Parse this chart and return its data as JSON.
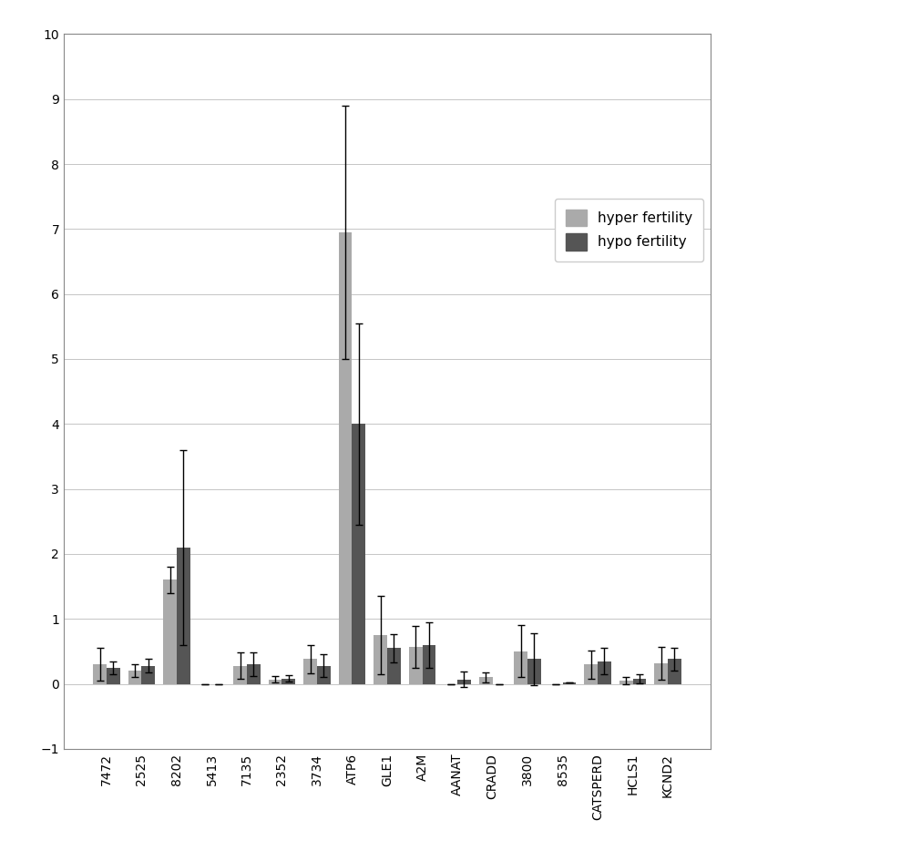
{
  "categories": [
    "7472",
    "2525",
    "8202",
    "5413",
    "7135",
    "2352",
    "3734",
    "ATP6",
    "GLE1",
    "A2M",
    "AANAT",
    "CRADD",
    "3800",
    "8535",
    "CATSPERD",
    "HCLS1",
    "KCND2"
  ],
  "hyper_values": [
    0.3,
    0.2,
    1.6,
    0.0,
    0.28,
    0.07,
    0.38,
    6.95,
    0.75,
    0.57,
    0.0,
    0.1,
    0.5,
    0.0,
    0.3,
    0.05,
    0.32
  ],
  "hypo_values": [
    0.25,
    0.28,
    2.1,
    0.0,
    0.3,
    0.08,
    0.28,
    4.0,
    0.55,
    0.6,
    0.07,
    0.0,
    0.38,
    0.02,
    0.35,
    0.08,
    0.38
  ],
  "hyper_errors": [
    0.25,
    0.1,
    0.2,
    0.0,
    0.2,
    0.05,
    0.22,
    1.95,
    0.6,
    0.32,
    0.0,
    0.08,
    0.4,
    0.0,
    0.22,
    0.05,
    0.25
  ],
  "hypo_errors": [
    0.1,
    0.1,
    1.5,
    0.0,
    0.18,
    0.05,
    0.18,
    1.55,
    0.22,
    0.35,
    0.12,
    0.0,
    0.4,
    0.0,
    0.2,
    0.07,
    0.18
  ],
  "hyper_color": "#aaaaaa",
  "hypo_color": "#555555",
  "legend_labels": [
    "hyper fertility",
    "hypo fertility"
  ],
  "ylim": [
    -1,
    10
  ],
  "yticks": [
    -1,
    0,
    1,
    2,
    3,
    4,
    5,
    6,
    7,
    8,
    9,
    10
  ],
  "bar_width": 0.38,
  "background_color": "#ffffff",
  "grid_color": "#bbbbbb",
  "figsize": [
    10.0,
    9.34
  ],
  "dpi": 100
}
